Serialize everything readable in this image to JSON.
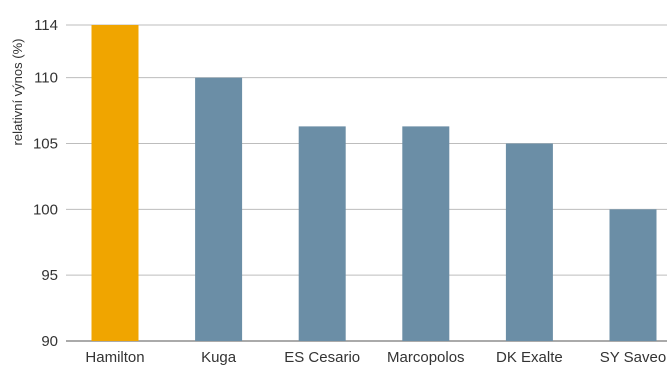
{
  "chart_data": {
    "type": "bar",
    "categories": [
      "Hamilton",
      "Kuga",
      "ES Cesario",
      "Marcopolos",
      "DK Exalte",
      "SY Saveo"
    ],
    "values": [
      114,
      110,
      106.3,
      106.3,
      105,
      100
    ],
    "highlight_index": 0,
    "colors": {
      "highlight": "#f0a500",
      "default": "#6b8ea6"
    },
    "xlabel": "",
    "ylabel": "relativní výnos (%)",
    "ylim": [
      90,
      114
    ],
    "yticks": [
      90,
      95,
      100,
      105,
      110,
      114
    ],
    "grid": true,
    "legend": "none"
  }
}
